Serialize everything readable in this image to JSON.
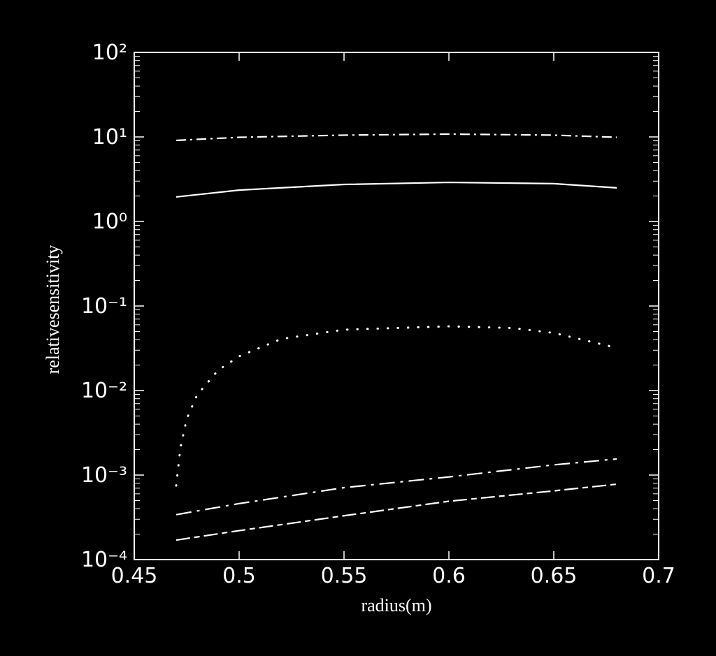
{
  "chart_data": {
    "type": "line",
    "xlabel": "radius(m)",
    "ylabel": "relativesensitivity",
    "xlim": [
      0.45,
      0.7
    ],
    "xticks": [
      0.45,
      0.5,
      0.55,
      0.6,
      0.65,
      0.7
    ],
    "ylim": [
      0.0001,
      100
    ],
    "yscale": "log",
    "yticks": [
      {
        "value": 0.0001,
        "label": "10⁻⁴"
      },
      {
        "value": 0.001,
        "label": "10⁻³"
      },
      {
        "value": 0.01,
        "label": "10⁻²"
      },
      {
        "value": 0.1,
        "label": "10⁻¹"
      },
      {
        "value": 1,
        "label": "10⁰"
      },
      {
        "value": 10,
        "label": "10¹"
      },
      {
        "value": 100,
        "label": "10²"
      }
    ],
    "yminorticks": [
      0.0002,
      0.0003,
      0.0004,
      0.0005,
      0.0006,
      0.0007,
      0.0008,
      0.0009,
      0.002,
      0.003,
      0.004,
      0.005,
      0.006,
      0.007,
      0.008,
      0.009,
      0.02,
      0.03,
      0.04,
      0.05,
      0.06,
      0.07,
      0.08,
      0.09,
      0.2,
      0.3,
      0.4,
      0.5,
      0.6,
      0.7,
      0.8,
      0.9,
      2,
      3,
      4,
      5,
      6,
      7,
      8,
      9,
      20,
      30,
      40,
      50,
      60,
      70,
      80,
      90
    ],
    "background": "#000000",
    "series": [
      {
        "color": "#ffffff",
        "dash": "dashdot",
        "x": [
          0.47,
          0.5,
          0.55,
          0.6,
          0.65,
          0.68
        ],
        "values": [
          9.1,
          9.9,
          10.5,
          10.8,
          10.5,
          9.9
        ]
      },
      {
        "color": "#ffffff",
        "dash": "solid",
        "x": [
          0.47,
          0.5,
          0.55,
          0.6,
          0.65,
          0.68
        ],
        "values": [
          1.95,
          2.35,
          2.74,
          2.9,
          2.8,
          2.5
        ]
      },
      {
        "color": "#ffffff",
        "dash": "dotted",
        "x": [
          0.47,
          0.472,
          0.475,
          0.48,
          0.49,
          0.5,
          0.52,
          0.55,
          0.6,
          0.63,
          0.65,
          0.68
        ],
        "values": [
          0.00075,
          0.0021,
          0.0046,
          0.0089,
          0.0174,
          0.0254,
          0.0407,
          0.0525,
          0.0575,
          0.055,
          0.048,
          0.032
        ]
      },
      {
        "color": "#ffffff",
        "dash": "longdashdot",
        "x": [
          0.47,
          0.5,
          0.55,
          0.6,
          0.65,
          0.68
        ],
        "values": [
          0.00034,
          0.00046,
          0.00071,
          0.00095,
          0.00132,
          0.00155
        ]
      },
      {
        "color": "#ffffff",
        "dash": "longdashshortdash",
        "x": [
          0.47,
          0.5,
          0.55,
          0.6,
          0.65,
          0.68
        ],
        "values": [
          0.00017,
          0.00022,
          0.00033,
          0.00049,
          0.00065,
          0.00078
        ]
      }
    ]
  }
}
